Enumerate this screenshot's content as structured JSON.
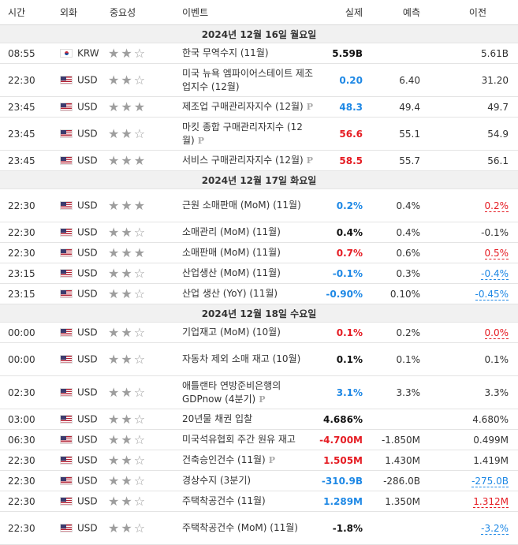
{
  "header": {
    "time": "시간",
    "currency": "외화",
    "importance": "중요성",
    "event": "이벤트",
    "actual": "실제",
    "forecast": "예측",
    "previous": "이전"
  },
  "colors": {
    "up": "#e51c23",
    "down": "#1e88e5",
    "date_bg": "#f1f1f1"
  },
  "days": [
    {
      "date": "2024년 12월 16일 월요일",
      "events": [
        {
          "time": "08:55",
          "flag": "kor",
          "currency": "KRW",
          "stars": 2,
          "event": "한국 무역수지 (11월)",
          "prelim": false,
          "actual": "5.59B",
          "actual_color": "black",
          "forecast": "",
          "previous": "5.61B",
          "prev_style": ""
        },
        {
          "time": "22:30",
          "flag": "usa",
          "currency": "USD",
          "stars": 2,
          "event": "미국 뉴욕 엠파이어스테이트 제조업지수 (12월)",
          "prelim": false,
          "actual": "0.20",
          "actual_color": "blue",
          "forecast": "6.40",
          "previous": "31.20",
          "prev_style": ""
        },
        {
          "time": "23:45",
          "flag": "usa",
          "currency": "USD",
          "stars": 3,
          "event": "제조업 구매관리자지수 (12월)",
          "prelim": true,
          "actual": "48.3",
          "actual_color": "blue",
          "forecast": "49.4",
          "previous": "49.7",
          "prev_style": ""
        },
        {
          "time": "23:45",
          "flag": "usa",
          "currency": "USD",
          "stars": 2,
          "event": "마킷 종합 구매관리자지수 (12월)",
          "prelim": true,
          "actual": "56.6",
          "actual_color": "red",
          "forecast": "55.1",
          "previous": "54.9",
          "prev_style": ""
        },
        {
          "time": "23:45",
          "flag": "usa",
          "currency": "USD",
          "stars": 3,
          "event": "서비스 구매관리자지수 (12월)",
          "prelim": true,
          "actual": "58.5",
          "actual_color": "red",
          "forecast": "55.7",
          "previous": "56.1",
          "prev_style": ""
        }
      ]
    },
    {
      "date": "2024년 12월 17일 화요일",
      "events": [
        {
          "time": "22:30",
          "flag": "usa",
          "currency": "USD",
          "stars": 3,
          "event": "근원 소매판매 (MoM) (11월)",
          "prelim": false,
          "actual": "0.2%",
          "actual_color": "blue",
          "forecast": "0.4%",
          "previous": "0.2%",
          "prev_style": "ul-red"
        },
        {
          "time": "22:30",
          "flag": "usa",
          "currency": "USD",
          "stars": 2,
          "event": "소매관리 (MoM) (11월)",
          "prelim": false,
          "actual": "0.4%",
          "actual_color": "black",
          "forecast": "0.4%",
          "previous": "-0.1%",
          "prev_style": ""
        },
        {
          "time": "22:30",
          "flag": "usa",
          "currency": "USD",
          "stars": 3,
          "event": "소매판매 (MoM) (11월)",
          "prelim": false,
          "actual": "0.7%",
          "actual_color": "red",
          "forecast": "0.6%",
          "previous": "0.5%",
          "prev_style": "ul-red"
        },
        {
          "time": "23:15",
          "flag": "usa",
          "currency": "USD",
          "stars": 2,
          "event": "산업생산 (MoM) (11월)",
          "prelim": false,
          "actual": "-0.1%",
          "actual_color": "blue",
          "forecast": "0.3%",
          "previous": "-0.4%",
          "prev_style": "ul-blue"
        },
        {
          "time": "23:15",
          "flag": "usa",
          "currency": "USD",
          "stars": 2,
          "event": "산업 생산 (YoY) (11월)",
          "prelim": false,
          "actual": "-0.90%",
          "actual_color": "blue",
          "forecast": "0.10%",
          "previous": "-0.45%",
          "prev_style": "ul-blue"
        }
      ]
    },
    {
      "date": "2024년 12월 18일 수요일",
      "events": [
        {
          "time": "00:00",
          "flag": "usa",
          "currency": "USD",
          "stars": 2,
          "event": "기업재고 (MoM) (10월)",
          "prelim": false,
          "actual": "0.1%",
          "actual_color": "red",
          "forecast": "0.2%",
          "previous": "0.0%",
          "prev_style": "ul-red"
        },
        {
          "time": "00:00",
          "flag": "usa",
          "currency": "USD",
          "stars": 2,
          "event": "자동차 제외 소매 재고 (10월)",
          "prelim": false,
          "actual": "0.1%",
          "actual_color": "black",
          "forecast": "0.1%",
          "previous": "0.1%",
          "prev_style": ""
        },
        {
          "time": "02:30",
          "flag": "usa",
          "currency": "USD",
          "stars": 2,
          "event": "애틀랜타 연방준비은행의 GDPnow (4분기)",
          "prelim": true,
          "actual": "3.1%",
          "actual_color": "blue",
          "forecast": "3.3%",
          "previous": "3.3%",
          "prev_style": ""
        },
        {
          "time": "03:00",
          "flag": "usa",
          "currency": "USD",
          "stars": 2,
          "event": "20년물 채권 입찰",
          "prelim": false,
          "actual": "4.686%",
          "actual_color": "black",
          "forecast": "",
          "previous": "4.680%",
          "prev_style": ""
        },
        {
          "time": "06:30",
          "flag": "usa",
          "currency": "USD",
          "stars": 2,
          "event": "미국석유협회 주간 원유 재고",
          "prelim": false,
          "actual": "-4.700M",
          "actual_color": "red",
          "forecast": "-1.850M",
          "previous": "0.499M",
          "prev_style": ""
        },
        {
          "time": "22:30",
          "flag": "usa",
          "currency": "USD",
          "stars": 2,
          "event": "건축승인건수 (11월)",
          "prelim": true,
          "actual": "1.505M",
          "actual_color": "red",
          "forecast": "1.430M",
          "previous": "1.419M",
          "prev_style": ""
        },
        {
          "time": "22:30",
          "flag": "usa",
          "currency": "USD",
          "stars": 2,
          "event": "경상수지 (3분기)",
          "prelim": false,
          "actual": "-310.9B",
          "actual_color": "blue",
          "forecast": "-286.0B",
          "previous": "-275.0B",
          "prev_style": "ul-blue"
        },
        {
          "time": "22:30",
          "flag": "usa",
          "currency": "USD",
          "stars": 2,
          "event": "주택착공건수 (11월)",
          "prelim": false,
          "actual": "1.289M",
          "actual_color": "blue",
          "forecast": "1.350M",
          "previous": "1.312M",
          "prev_style": "ul-red"
        },
        {
          "time": "22:30",
          "flag": "usa",
          "currency": "USD",
          "stars": 2,
          "event": "주택착공건수 (MoM) (11월)",
          "prelim": false,
          "actual": "-1.8%",
          "actual_color": "black",
          "forecast": "",
          "previous": "-3.2%",
          "prev_style": "ul-blue"
        }
      ]
    }
  ]
}
